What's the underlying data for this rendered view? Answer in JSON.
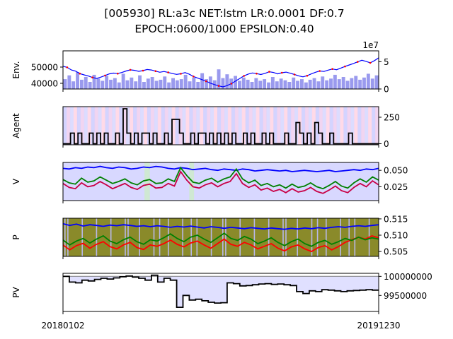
{
  "figure": {
    "title_line1": "[005930] RL:a3c NET:lstm LR:0.0001 DF:0.7",
    "title_line2": "EPOCH:0600/1000 EPSILON:0.40"
  },
  "x_ticks": [
    "20180102",
    "20191230"
  ],
  "colors": {
    "blue": "#0000ff",
    "red": "#ff0000",
    "green": "#008000",
    "crimson": "#c80046",
    "black": "#000000",
    "volume": "#9a9aee",
    "olive": "#8a8a2a",
    "lavender": "#d8d8ff"
  },
  "chart_data": [
    {
      "type": "line",
      "panel": "env",
      "ylabel": "Env.",
      "exponent_label": "1e7",
      "left_ticks": [
        "40000",
        "50000"
      ],
      "right_ticks": [
        "0",
        "5"
      ],
      "ylim_left": [
        36500,
        60000
      ],
      "ylim_right": [
        0,
        7000000
      ],
      "series": [
        {
          "values": [
            50500,
            49800,
            48200,
            47500,
            46000,
            45200,
            44500,
            43600,
            43000,
            43800,
            44800,
            45800,
            46300,
            46000,
            46700,
            47600,
            48300,
            48000,
            47400,
            47800,
            48500,
            48200,
            47500,
            46800,
            47300,
            46700,
            46000,
            45500,
            45900,
            46600,
            45600,
            44200,
            43200,
            42300,
            41300,
            40100,
            39200,
            38400,
            37800,
            38600,
            39800,
            41400,
            43000,
            44600,
            45700,
            46400,
            46000,
            45400,
            46100,
            47100,
            46700,
            45800,
            46500,
            46900,
            46200,
            45400,
            44600,
            44000,
            44700,
            45800,
            46800,
            47600,
            47300,
            48100,
            48800,
            48400,
            49400,
            50400,
            51300,
            52200,
            53200,
            54200,
            53500,
            52600,
            54000,
            55700
          ]
        },
        {
          "name": "volume",
          "values": [
            1800000,
            2500000,
            1400000,
            3100000,
            1700000,
            2200000,
            1300000,
            2600000,
            1900000,
            1500000,
            2400000,
            1700000,
            2000000,
            1200000,
            2800000,
            1600000,
            2100000,
            1400000,
            2500000,
            1300000,
            1900000,
            2200000,
            1500000,
            1700000,
            2300000,
            1200000,
            2000000,
            1600000,
            1800000,
            2600000,
            1400000,
            2100000,
            1300000,
            2900000,
            1800000,
            2300000,
            1600000,
            3600000,
            2000000,
            2700000,
            1900000,
            2400000,
            1500000,
            2100000,
            1700000,
            1300000,
            2000000,
            1500000,
            1800000,
            1200000,
            2200000,
            1400000,
            1900000,
            1600000,
            1300000,
            2100000,
            1500000,
            1800000,
            1200000,
            1700000,
            2000000,
            1400000,
            2300000,
            1600000,
            1900000,
            2600000,
            1800000,
            2200000,
            1500000,
            2000000,
            2400000,
            1700000,
            2100000,
            2800000,
            1900000,
            2500000
          ]
        }
      ]
    },
    {
      "type": "line",
      "panel": "agent",
      "ylabel": "Agent",
      "right_ticks": [
        "0",
        "250"
      ],
      "ylim": [
        -10,
        350
      ],
      "series": [
        {
          "values": [
            0,
            0,
            100,
            0,
            100,
            0,
            0,
            100,
            0,
            100,
            0,
            100,
            0,
            0,
            100,
            0,
            330,
            100,
            0,
            100,
            0,
            100,
            100,
            0,
            100,
            0,
            0,
            100,
            0,
            230,
            230,
            100,
            0,
            0,
            100,
            0,
            100,
            100,
            0,
            100,
            0,
            100,
            0,
            100,
            0,
            100,
            0,
            0,
            100,
            0,
            100,
            0,
            0,
            100,
            0,
            100,
            0,
            0,
            0,
            100,
            0,
            0,
            200,
            100,
            0,
            100,
            0,
            200,
            100,
            0,
            0,
            100,
            0,
            0,
            0,
            0,
            100,
            0,
            0,
            0,
            0,
            0,
            0,
            0
          ]
        }
      ]
    },
    {
      "type": "line",
      "panel": "V",
      "ylabel": "V",
      "right_ticks": [
        "0.025",
        "0.050"
      ],
      "ylim": [
        0.004,
        0.062
      ],
      "series": [
        {
          "values": [
            0.053,
            0.052,
            0.054,
            0.053,
            0.055,
            0.054,
            0.056,
            0.054,
            0.053,
            0.055,
            0.054,
            0.052,
            0.053,
            0.055,
            0.054,
            0.056,
            0.055,
            0.053,
            0.052,
            0.054,
            0.053,
            0.051,
            0.052,
            0.053,
            0.051,
            0.05,
            0.052,
            0.051,
            0.05,
            0.052,
            0.051,
            0.049,
            0.05,
            0.051,
            0.05,
            0.049,
            0.05,
            0.048,
            0.049,
            0.05,
            0.049,
            0.048,
            0.049,
            0.05,
            0.048,
            0.049,
            0.05,
            0.051,
            0.05,
            0.052,
            0.051,
            0.053
          ]
        },
        {
          "values": [
            0.03,
            0.024,
            0.022,
            0.031,
            0.025,
            0.027,
            0.033,
            0.028,
            0.022,
            0.026,
            0.03,
            0.024,
            0.021,
            0.027,
            0.029,
            0.023,
            0.024,
            0.03,
            0.026,
            0.048,
            0.035,
            0.025,
            0.023,
            0.028,
            0.031,
            0.025,
            0.03,
            0.033,
            0.045,
            0.03,
            0.024,
            0.028,
            0.02,
            0.023,
            0.018,
            0.021,
            0.016,
            0.022,
            0.017,
            0.019,
            0.024,
            0.018,
            0.015,
            0.02,
            0.026,
            0.019,
            0.016,
            0.024,
            0.03,
            0.025,
            0.034,
            0.028
          ]
        },
        {
          "values": [
            0.036,
            0.031,
            0.029,
            0.038,
            0.032,
            0.034,
            0.04,
            0.035,
            0.03,
            0.033,
            0.037,
            0.031,
            0.028,
            0.034,
            0.036,
            0.03,
            0.031,
            0.037,
            0.033,
            0.054,
            0.042,
            0.032,
            0.03,
            0.035,
            0.038,
            0.032,
            0.037,
            0.04,
            0.052,
            0.037,
            0.031,
            0.035,
            0.027,
            0.03,
            0.025,
            0.028,
            0.023,
            0.029,
            0.024,
            0.026,
            0.031,
            0.025,
            0.022,
            0.027,
            0.033,
            0.026,
            0.023,
            0.031,
            0.037,
            0.032,
            0.04,
            0.035
          ]
        }
      ]
    },
    {
      "type": "line",
      "panel": "P",
      "ylabel": "P",
      "right_ticks": [
        "0.505",
        "0.510",
        "0.515"
      ],
      "ylim": [
        0.5035,
        0.5152
      ],
      "series": [
        {
          "values": [
            0.5135,
            0.513,
            0.5134,
            0.5128,
            0.5132,
            0.513,
            0.5127,
            0.5131,
            0.5129,
            0.5132,
            0.513,
            0.5127,
            0.5129,
            0.5126,
            0.5129,
            0.5127,
            0.5124,
            0.5127,
            0.5125,
            0.5128,
            0.5125,
            0.5122,
            0.5126,
            0.5124,
            0.5121,
            0.5124,
            0.5122,
            0.512,
            0.5123,
            0.5121,
            0.5119,
            0.5122,
            0.512,
            0.5118,
            0.5121,
            0.5119,
            0.5122,
            0.512,
            0.5123,
            0.5121,
            0.5124,
            0.5126,
            0.5124,
            0.5127,
            0.5129,
            0.5127,
            0.513,
            0.5132
          ]
        },
        {
          "values": [
            0.507,
            0.5055,
            0.5068,
            0.5075,
            0.506,
            0.5072,
            0.508,
            0.5065,
            0.5058,
            0.507,
            0.5078,
            0.5062,
            0.5056,
            0.507,
            0.5066,
            0.5074,
            0.5085,
            0.5072,
            0.5064,
            0.5076,
            0.5082,
            0.507,
            0.506,
            0.5074,
            0.5088,
            0.5072,
            0.5066,
            0.5078,
            0.507,
            0.5058,
            0.5066,
            0.5074,
            0.506,
            0.5052,
            0.5064,
            0.507,
            0.5058,
            0.505,
            0.5062,
            0.5068,
            0.5055,
            0.5065,
            0.5078,
            0.5086,
            0.5094,
            0.5088,
            0.5098,
            0.5092
          ]
        },
        {
          "values": [
            0.5085,
            0.507,
            0.5082,
            0.509,
            0.5076,
            0.5088,
            0.5098,
            0.5082,
            0.5074,
            0.5086,
            0.5094,
            0.508,
            0.5072,
            0.5086,
            0.5082,
            0.5092,
            0.5104,
            0.509,
            0.508,
            0.5094,
            0.51,
            0.5088,
            0.5078,
            0.5092,
            0.5106,
            0.509,
            0.5084,
            0.5096,
            0.5088,
            0.5074,
            0.5082,
            0.5092,
            0.5078,
            0.5068,
            0.508,
            0.5088,
            0.5074,
            0.5066,
            0.5078,
            0.5084,
            0.5072,
            0.508,
            0.509,
            0.5084,
            0.5094,
            0.5086,
            0.5092,
            0.5088
          ]
        }
      ]
    },
    {
      "type": "area",
      "panel": "PV",
      "ylabel": "PV",
      "right_ticks": [
        "99500000",
        "100000000"
      ],
      "baseline": 100000000,
      "ylim": [
        99080000,
        100080000
      ],
      "series": [
        {
          "values": [
            100000000,
            99850000,
            99830000,
            99900000,
            99880000,
            99920000,
            99950000,
            99930000,
            99960000,
            99990000,
            100010000,
            99980000,
            99950000,
            99900000,
            100030000,
            99850000,
            99950000,
            99900000,
            99190000,
            99500000,
            99380000,
            99400000,
            99360000,
            99320000,
            99300000,
            99310000,
            99830000,
            99810000,
            99750000,
            99760000,
            99780000,
            99800000,
            99810000,
            99790000,
            99800000,
            99780000,
            99760000,
            99600000,
            99550000,
            99620000,
            99600000,
            99650000,
            99640000,
            99620000,
            99600000,
            99620000,
            99630000,
            99640000,
            99650000,
            99640000
          ]
        }
      ]
    }
  ]
}
